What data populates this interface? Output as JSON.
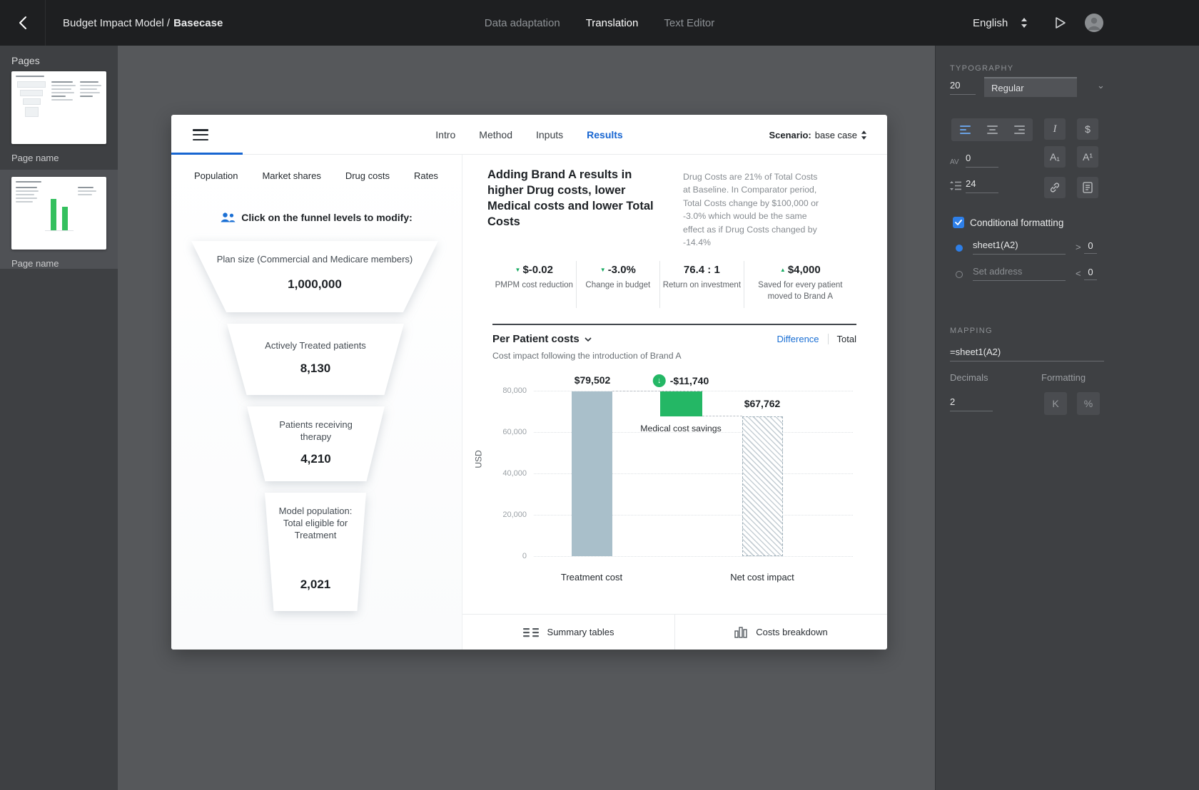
{
  "topbar": {
    "title_prefix": "Budget Impact Model /",
    "title_bold": "Basecase",
    "tabs": [
      {
        "label": "Data adaptation"
      },
      {
        "label": "Translation"
      },
      {
        "label": "Text Editor"
      }
    ],
    "language": "English"
  },
  "pages_panel": {
    "title": "Pages",
    "items": [
      {
        "label": "Page name"
      },
      {
        "label": "Page name"
      }
    ]
  },
  "app": {
    "nav_tabs": [
      {
        "label": "Intro"
      },
      {
        "label": "Method"
      },
      {
        "label": "Inputs"
      },
      {
        "label": "Results"
      }
    ],
    "scenario_label": "Scenario:",
    "scenario_value": "base case",
    "left_tabs": [
      "Population",
      "Market shares",
      "Drug costs",
      "Rates"
    ],
    "funnel": {
      "instruction": "Click on the funnel levels to modify:",
      "levels": [
        {
          "label": "Plan size (Commercial and Medicare members)",
          "value": "1,000,000"
        },
        {
          "label": "Actively Treated patients",
          "value": "8,130"
        },
        {
          "label": "Patients receiving therapy",
          "value": "4,210"
        },
        {
          "label": "Model population: Total eligible for Treatment",
          "value": "2,021"
        }
      ]
    },
    "results": {
      "headline": "Adding Brand A results in higher Drug costs, lower Medical costs and lower Total Costs",
      "note": "Drug Costs are 21% of Total Costs at Baseline. In Comparator period, Total Costs change by $100,000 or -3.0% which would be the same effect as if Drug Costs changed by -14.4%",
      "kpis": [
        {
          "value": "$-0.02",
          "label": "PMPM cost reduction",
          "trend": "down"
        },
        {
          "value": "-3.0%",
          "label": "Change in budget",
          "trend": "down"
        },
        {
          "value": "76.4 : 1",
          "label": "Return on investment",
          "trend": "none"
        },
        {
          "value": "$4,000",
          "label": "Saved for every patient moved to Brand A",
          "trend": "up"
        }
      ]
    },
    "footer": {
      "summary_tables": "Summary tables",
      "costs_breakdown": "Costs breakdown"
    }
  },
  "chart_data": {
    "type": "bar",
    "title": "Per Patient costs",
    "subtitle": "Cost impact following the introduction of Brand A",
    "toggle": {
      "difference": "Difference",
      "total": "Total"
    },
    "ylabel": "USD",
    "ylim": [
      0,
      80000
    ],
    "yticks": [
      "80,000",
      "60,000",
      "40,000",
      "20,000",
      "0"
    ],
    "categories": [
      "Treatment cost",
      "Net cost impact"
    ],
    "values": [
      79502,
      67762
    ],
    "bar_labels": [
      "$79,502",
      "$67,762"
    ],
    "connector": {
      "value": -11740,
      "label": "-$11,740",
      "annotation": "Medical cost savings"
    },
    "legend_position": "none",
    "grid": true
  },
  "inspector": {
    "typography": {
      "heading": "TYPOGRAPHY",
      "font_size": "20",
      "weight": "Regular",
      "italic_button": "I",
      "currency_button": "$",
      "subscript_button": "A₁",
      "superscript_button": "A¹",
      "letter_spacing_label": "AV",
      "letter_spacing": "0",
      "line_height": "24"
    },
    "conditional": {
      "label": "Conditional formatting",
      "rules": [
        {
          "address": "sheet1(A2)",
          "operator": ">",
          "value": "0"
        },
        {
          "placeholder": "Set address",
          "operator": "<",
          "value": "0"
        }
      ]
    },
    "mapping": {
      "heading": "MAPPING",
      "formula": "=sheet1(A2)",
      "decimals_label": "Decimals",
      "formatting_label": "Formatting",
      "decimals_value": "2",
      "k_button": "K",
      "percent_button": "%"
    }
  }
}
